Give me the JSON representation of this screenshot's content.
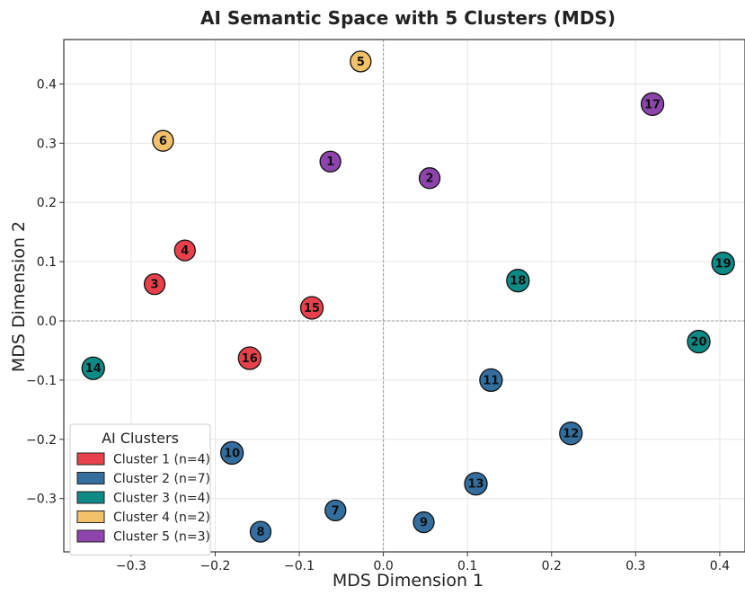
{
  "chart_data": {
    "type": "scatter",
    "title": "AI Semantic Space with 5 Clusters (MDS)",
    "xlabel": "MDS Dimension 1",
    "ylabel": "MDS Dimension 2",
    "xlim": [
      -0.38,
      0.43
    ],
    "ylim": [
      -0.39,
      0.475
    ],
    "x_ticks": [
      -0.3,
      -0.2,
      -0.1,
      0.0,
      0.1,
      0.2,
      0.3,
      0.4
    ],
    "x_tick_labels": [
      "−0.3",
      "−0.2",
      "−0.1",
      "0.0",
      "0.1",
      "0.2",
      "0.3",
      "0.4"
    ],
    "y_ticks": [
      -0.3,
      -0.2,
      -0.1,
      0.0,
      0.1,
      0.2,
      0.3,
      0.4
    ],
    "y_tick_labels": [
      "−0.3",
      "−0.2",
      "−0.1",
      "0.0",
      "0.1",
      "0.2",
      "0.3",
      "0.4"
    ],
    "grid": true,
    "zero_lines": true,
    "legend": {
      "title": "AI Clusters",
      "placement": "bottom-left"
    },
    "series": [
      {
        "name": "Cluster 1 (n=4)",
        "color": "#E8414B",
        "points": [
          {
            "label": "3",
            "x": -0.272,
            "y": 0.062
          },
          {
            "label": "4",
            "x": -0.236,
            "y": 0.119
          },
          {
            "label": "15",
            "x": -0.085,
            "y": 0.022
          },
          {
            "label": "16",
            "x": -0.159,
            "y": -0.063
          }
        ]
      },
      {
        "name": "Cluster 2 (n=7)",
        "color": "#336E9E",
        "points": [
          {
            "label": "7",
            "x": -0.057,
            "y": -0.32
          },
          {
            "label": "8",
            "x": -0.146,
            "y": -0.356
          },
          {
            "label": "9",
            "x": 0.048,
            "y": -0.34
          },
          {
            "label": "10",
            "x": -0.18,
            "y": -0.223
          },
          {
            "label": "11",
            "x": 0.128,
            "y": -0.1
          },
          {
            "label": "12",
            "x": 0.223,
            "y": -0.19
          },
          {
            "label": "13",
            "x": 0.11,
            "y": -0.275
          }
        ]
      },
      {
        "name": "Cluster 3 (n=4)",
        "color": "#0E8A86",
        "points": [
          {
            "label": "14",
            "x": -0.345,
            "y": -0.08
          },
          {
            "label": "18",
            "x": 0.16,
            "y": 0.068
          },
          {
            "label": "19",
            "x": 0.404,
            "y": 0.097
          },
          {
            "label": "20",
            "x": 0.375,
            "y": -0.035
          }
        ]
      },
      {
        "name": "Cluster 4 (n=2)",
        "color": "#F3C16A",
        "points": [
          {
            "label": "5",
            "x": -0.027,
            "y": 0.438
          },
          {
            "label": "6",
            "x": -0.262,
            "y": 0.304
          }
        ]
      },
      {
        "name": "Cluster 5 (n=3)",
        "color": "#8E44AD",
        "points": [
          {
            "label": "1",
            "x": -0.063,
            "y": 0.269
          },
          {
            "label": "2",
            "x": 0.055,
            "y": 0.241
          },
          {
            "label": "17",
            "x": 0.32,
            "y": 0.366
          }
        ]
      }
    ]
  }
}
